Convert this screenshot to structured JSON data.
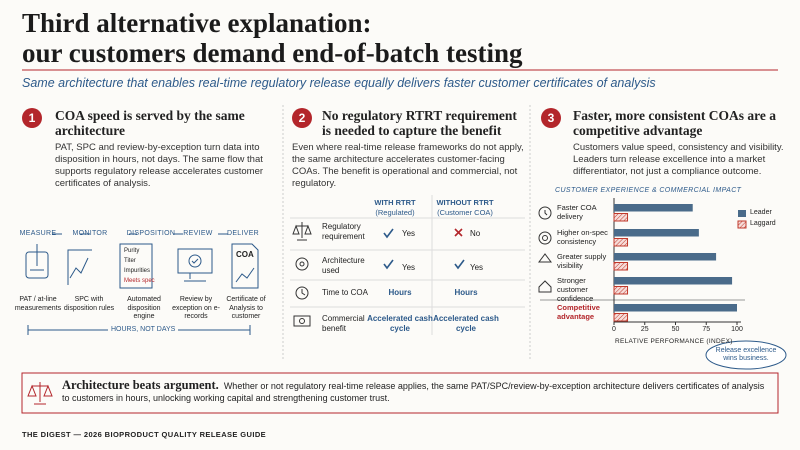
{
  "header": {
    "title_lines": [
      "Third alternative explanation:",
      "our customers demand end-of-batch testing"
    ],
    "subtitle": "Same architecture that enables real-time regulatory release equally delivers faster customer certificates of analysis"
  },
  "columns": [
    {
      "number": "1",
      "heading": "COA speed is served by the same architecture",
      "body": "PAT, SPC and review-by-exception turn data into disposition in hours, not days. The same flow that supports regulatory release accelerates customer certificates of analysis."
    },
    {
      "number": "2",
      "heading": "No regulatory RTRT requirement is needed to capture the benefit",
      "body": "Even where real-time release frameworks do not apply, the same architecture accelerates customer-facing COAs. The benefit is operational and commercial, not regulatory."
    },
    {
      "number": "3",
      "heading": "Faster, more consistent COAs are a competitive advantage",
      "body": "Customers value speed, consistency and visibility. Leaders turn release excellence into a market differentiator, not just a compliance outcome."
    }
  ],
  "flow": {
    "steps": [
      "MEASURE",
      "MONITOR",
      "DISPOSITION",
      "REVIEW",
      "DELIVER"
    ],
    "captions": [
      "PAT / at-line measurements",
      "SPC with disposition rules",
      "Automated disposition engine",
      "Review by exception on e-records",
      "Certificate of Analysis to customer"
    ],
    "checklist": [
      "Purity",
      "Titer",
      "Impurities",
      "Meets spec"
    ],
    "doc_label": "COA",
    "span_label": "HOURS, NOT DAYS"
  },
  "comparison": {
    "headers": [
      {
        "title": "WITH RTRT",
        "sub": "(Regulated)"
      },
      {
        "title": "WITHOUT RTRT",
        "sub": "(Customer COA)"
      }
    ],
    "rows": [
      {
        "label": "Regulatory requirement",
        "with": "Yes",
        "without": "No"
      },
      {
        "label": "Architecture used",
        "with": "Yes",
        "without": "Yes"
      },
      {
        "label": "Time to COA",
        "with": "Hours",
        "without": "Hours"
      },
      {
        "label": "Commercial benefit",
        "with": "Accelerated cash cycle",
        "without": "Accelerated cash cycle"
      }
    ]
  },
  "chart_data": {
    "type": "hbar",
    "title": "CUSTOMER EXPERIENCE & COMMERCIAL IMPACT",
    "x_label": "RELATIVE PERFORMANCE (INDEX)",
    "categories": [
      "Faster COA delivery",
      "Higher on-spec consistency",
      "Greater supply visibility",
      "Stronger customer confidence",
      "Competitive advantage"
    ],
    "series": [
      {
        "name": "Leader",
        "color": "#4a6b8a",
        "values": [
          64,
          69,
          83,
          96,
          100
        ]
      },
      {
        "name": "Laggard",
        "color": "#c0392b",
        "values": [
          11,
          11,
          11,
          11,
          11
        ]
      }
    ],
    "xlim": [
      0,
      100
    ],
    "xticks": [
      0,
      25,
      50,
      75,
      100
    ],
    "legend": "upper-right",
    "annotation": "Release excellence wins business."
  },
  "callout": {
    "title": "Architecture beats argument.",
    "body": "Whether or not regulatory real-time release applies, the same PAT/SPC/review-by-exception architecture delivers certificates of analysis to customers in hours, unlocking working capital and strengthening customer trust."
  },
  "footer": "THE DIGEST — 2026 BIOPRODUCT QUALITY RELEASE GUIDE"
}
